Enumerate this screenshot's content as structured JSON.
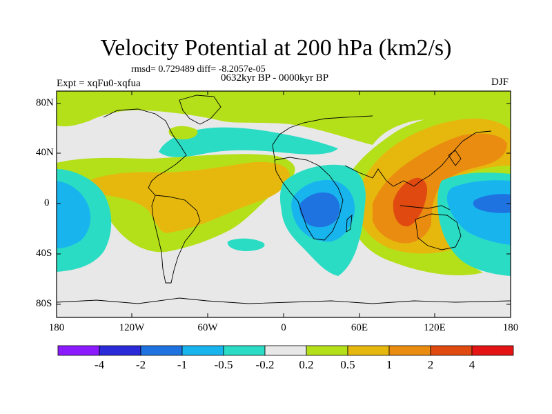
{
  "header": {
    "title": "Velocity Potential at 200 hPa (km2/s)",
    "stats": "rmsd= 0.729489 diff= -8.2057e-05",
    "experiment": "Expt = xqFu0-xqfua",
    "period": "0632kyr BP - 0000kyr BP",
    "season": "DJF"
  },
  "axes": {
    "lat_labels": [
      "80N",
      "40N",
      "0",
      "40S",
      "80S"
    ],
    "lon_labels": [
      "180",
      "120W",
      "60W",
      "0",
      "60E",
      "120E",
      "180"
    ]
  },
  "colorbar": {
    "labels": [
      "-4",
      "-2",
      "-1",
      "-0.5",
      "-0.2",
      "0.2",
      "0.5",
      "1",
      "2",
      "4"
    ],
    "colors": [
      "#8b1aff",
      "#2a2ad8",
      "#1e73e0",
      "#18b4ee",
      "#2bdcc4",
      "#e8e8e8",
      "#b4e01a",
      "#e6b80d",
      "#ea8c10",
      "#e04a10",
      "#e41414"
    ]
  },
  "map_colors": {
    "land_outline": "#000000",
    "map_border": "#000000"
  }
}
